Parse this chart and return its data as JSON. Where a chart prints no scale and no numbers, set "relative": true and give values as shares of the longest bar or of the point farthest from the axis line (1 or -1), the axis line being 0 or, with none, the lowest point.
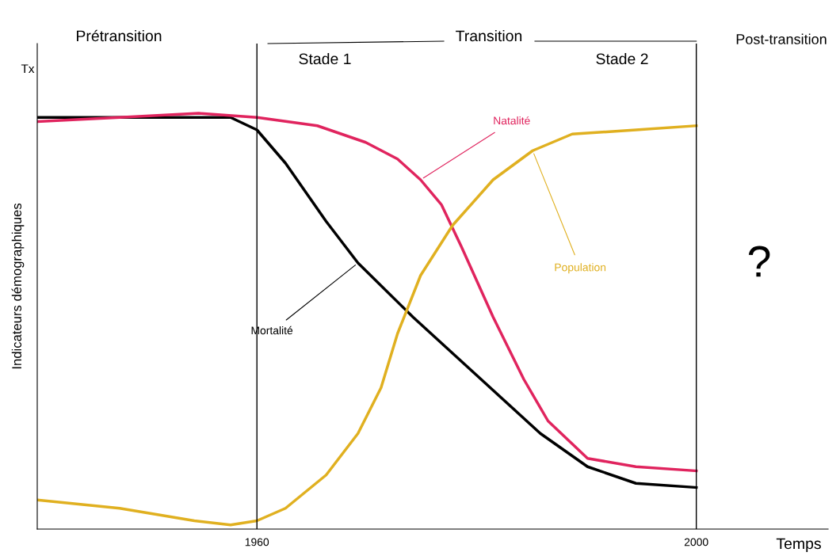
{
  "chart_data": {
    "type": "line",
    "relative": true,
    "xlabel": "Temps",
    "ylabel": "Indicateurs démographiques",
    "x": [
      1940,
      1951.1,
      1957.6,
      1960,
      1962.6,
      1966.3,
      1969.2,
      1974.2,
      1980,
      1985.8,
      1990.1,
      1994.5,
      2000
    ],
    "xlim": [
      1940,
      2012
    ],
    "xticks": [
      1960,
      2000
    ],
    "series": [
      {
        "name": "Mortalité",
        "color": "#000000",
        "values": [
          0.99,
          0.99,
          0.99,
          0.96,
          0.88,
          0.74,
          0.64,
          0.51,
          0.37,
          0.23,
          0.15,
          0.11,
          0.1
        ]
      },
      {
        "name": "Natalité",
        "color": "#e0245e",
        "x": [
          1940,
          1947.5,
          1954.7,
          1960,
          1965.5,
          1969.9,
          1972.8,
          1974.9,
          1976.8,
          1978.6,
          1981.5,
          1984.3,
          1986.5,
          1990.1,
          1994.5,
          2000
        ],
        "values": [
          0.98,
          0.99,
          1.0,
          0.99,
          0.97,
          0.93,
          0.89,
          0.84,
          0.78,
          0.68,
          0.51,
          0.36,
          0.26,
          0.17,
          0.15,
          0.14
        ]
      },
      {
        "name": "Population",
        "color": "#e0b020",
        "x": [
          1940,
          1947.5,
          1954.3,
          1957.6,
          1960,
          1962.6,
          1966.3,
          1969.2,
          1971.3,
          1972.8,
          1974.9,
          1977.8,
          1981.5,
          1985.1,
          1988.7,
          1994.5,
          2000
        ],
        "values": [
          0.07,
          0.05,
          0.02,
          0.01,
          0.02,
          0.05,
          0.13,
          0.23,
          0.34,
          0.47,
          0.61,
          0.73,
          0.84,
          0.91,
          0.95,
          0.96,
          0.97
        ]
      }
    ],
    "ref_lines": [
      {
        "axis": "x",
        "value": 1960,
        "color": "#000000"
      },
      {
        "axis": "x",
        "value": 2000,
        "color": "#000000"
      }
    ],
    "annotations": [
      "Tx",
      "Prétransition",
      "Transition",
      "Post-transition",
      "Stade 1",
      "Stade 2",
      "?"
    ],
    "grid": false,
    "legend": false,
    "marker": "none",
    "line_style": "solid"
  }
}
